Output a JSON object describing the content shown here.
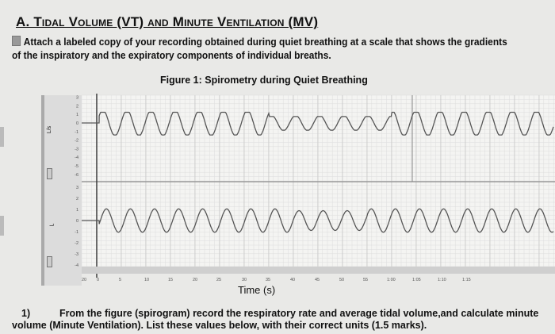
{
  "heading": "A. Tidal Volume (VT) and Minute Ventilation (MV)",
  "instruction": "Attach a labeled copy of your recording obtained during quiet breathing at a scale that shows the gradients of the inspiratory and the expiratory components of individual breaths.",
  "figure_title": "Figure 1: Spirometry during Quiet Breathing",
  "chart": {
    "upper_channel": {
      "unit": "L/s",
      "ticks": [
        "3",
        "2",
        "1",
        "0",
        "-1",
        "-2",
        "-3",
        "-4",
        "-5",
        "-6"
      ]
    },
    "lower_channel": {
      "unit": "L",
      "ticks": [
        "3",
        "2",
        "1",
        "0",
        "-1",
        "-2",
        "-3",
        "-4"
      ]
    },
    "x_ticks": [
      "20",
      "0",
      "5",
      "10",
      "15",
      "20",
      "25",
      "30",
      "35",
      "40",
      "45",
      "50",
      "55",
      "1:00",
      "1:05",
      "1:10",
      "1:15"
    ],
    "x_label": "Time (s)",
    "trace_color": "#555555"
  },
  "question": {
    "number": "1)",
    "text": "From the figure (spirogram) record the respiratory rate and average tidal volume,and calculate minute volume (Minute Ventilation). List these values below, with their correct units (1.5 marks)."
  }
}
